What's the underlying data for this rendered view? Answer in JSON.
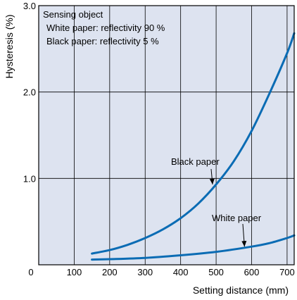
{
  "chart_data": {
    "type": "line",
    "xlabel": "Setting distance (mm)",
    "ylabel": "Hysteresis (%)",
    "xlim": [
      0,
      720
    ],
    "ylim": [
      0,
      3.0
    ],
    "x_ticks": [
      0,
      100,
      200,
      300,
      400,
      500,
      600,
      700
    ],
    "y_ticks": [
      1.0,
      2.0,
      3.0
    ],
    "y_tick_labels": [
      "1.0",
      "2.0",
      "3.0"
    ],
    "grid": true,
    "colors": {
      "plot_background": "#dde3f0",
      "line": "#0b6cb4",
      "grid": "#000000"
    },
    "legend_box": {
      "title": "Sensing object",
      "lines": [
        "White paper: reflectivity 90 %",
        "Black paper: reflectivity 5 %"
      ],
      "placement": "top-left"
    },
    "series": [
      {
        "name": "Black paper",
        "x": [
          150,
          200,
          250,
          300,
          350,
          400,
          450,
          500,
          550,
          600,
          650,
          700,
          720
        ],
        "y": [
          0.13,
          0.17,
          0.23,
          0.31,
          0.41,
          0.54,
          0.71,
          0.93,
          1.2,
          1.55,
          1.98,
          2.45,
          2.68
        ]
      },
      {
        "name": "White paper",
        "x": [
          150,
          200,
          300,
          400,
          500,
          600,
          650,
          700,
          720
        ],
        "y": [
          0.06,
          0.065,
          0.08,
          0.11,
          0.15,
          0.21,
          0.25,
          0.31,
          0.34
        ]
      }
    ],
    "annotations": [
      {
        "text": "Black paper",
        "series": "Black paper",
        "x": 490,
        "y": 0.93
      },
      {
        "text": "White paper",
        "series": "White paper",
        "x": 580,
        "y": 0.21
      }
    ]
  }
}
